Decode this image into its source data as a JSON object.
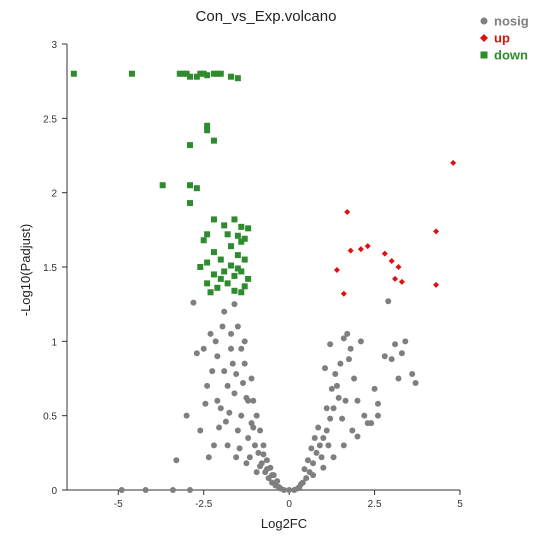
{
  "chart_data": {
    "type": "scatter",
    "title": "Con_vs_Exp.volcano",
    "xlabel": "Log2FC",
    "ylabel": "-Log10(Padjust)",
    "xlim": [
      -6.5,
      5
    ],
    "ylim": [
      0,
      3
    ],
    "xticks": [
      -5,
      -2.5,
      0,
      2.5,
      5
    ],
    "yticks": [
      0,
      0.5,
      1,
      1.5,
      2,
      2.5,
      3
    ],
    "legend_position": "top-right",
    "series": [
      {
        "name": "nosig",
        "color": "#7f7f7f",
        "marker": "circle",
        "points": [
          [
            -4.9,
            0.0
          ],
          [
            -4.2,
            0.0
          ],
          [
            -3.4,
            0.0
          ],
          [
            -2.9,
            0.0
          ],
          [
            -2.8,
            1.26
          ],
          [
            -3.0,
            0.5
          ],
          [
            -3.3,
            0.2
          ],
          [
            -2.1,
            0.9
          ],
          [
            -2.3,
            1.05
          ],
          [
            -1.9,
            1.2
          ],
          [
            -1.6,
            1.25
          ],
          [
            -2.6,
            0.4
          ],
          [
            -2.2,
            0.3
          ],
          [
            -2.0,
            0.55
          ],
          [
            -1.8,
            0.7
          ],
          [
            -1.7,
            0.95
          ],
          [
            -1.5,
            1.1
          ],
          [
            -1.3,
            0.85
          ],
          [
            -1.2,
            0.6
          ],
          [
            -1.1,
            0.45
          ],
          [
            -1.0,
            0.3
          ],
          [
            -0.9,
            0.25
          ],
          [
            -0.8,
            0.18
          ],
          [
            -0.7,
            0.12
          ],
          [
            -0.6,
            0.08
          ],
          [
            -0.5,
            0.05
          ],
          [
            -0.4,
            0.03
          ],
          [
            -0.3,
            0.02
          ],
          [
            -1.4,
            0.5
          ],
          [
            -1.6,
            0.65
          ],
          [
            -1.9,
            0.8
          ],
          [
            -2.1,
            0.6
          ],
          [
            -2.4,
            0.7
          ],
          [
            -1.4,
            0.95
          ],
          [
            -1.7,
            1.05
          ],
          [
            -1.2,
            0.35
          ],
          [
            -1.5,
            0.4
          ],
          [
            -1.8,
            0.3
          ],
          [
            -2.5,
            0.95
          ],
          [
            -1.3,
            1.0
          ],
          [
            -1.1,
            0.75
          ],
          [
            -0.95,
            0.5
          ],
          [
            -0.85,
            0.4
          ],
          [
            -0.75,
            0.3
          ],
          [
            -0.65,
            0.2
          ],
          [
            -0.55,
            0.15
          ],
          [
            -0.45,
            0.1
          ],
          [
            -0.35,
            0.06
          ],
          [
            -2.7,
            0.92
          ],
          [
            -1.95,
            1.1
          ],
          [
            -1.65,
            0.85
          ],
          [
            -1.35,
            0.72
          ],
          [
            -1.05,
            0.6
          ],
          [
            -2.05,
            0.42
          ],
          [
            -2.35,
            0.22
          ],
          [
            -1.55,
            0.22
          ],
          [
            -1.25,
            0.18
          ],
          [
            -0.95,
            0.12
          ],
          [
            -1.75,
            0.52
          ],
          [
            -2.15,
            1.0
          ],
          [
            0.3,
            0.02
          ],
          [
            0.4,
            0.05
          ],
          [
            0.5,
            0.08
          ],
          [
            0.6,
            0.12
          ],
          [
            0.7,
            0.18
          ],
          [
            0.8,
            0.25
          ],
          [
            0.9,
            0.3
          ],
          [
            1.0,
            0.35
          ],
          [
            1.1,
            0.4
          ],
          [
            1.2,
            0.48
          ],
          [
            1.3,
            0.55
          ],
          [
            1.4,
            0.7
          ],
          [
            1.5,
            0.85
          ],
          [
            1.6,
            1.02
          ],
          [
            1.7,
            1.05
          ],
          [
            1.8,
            0.95
          ],
          [
            1.9,
            0.75
          ],
          [
            2.0,
            0.6
          ],
          [
            2.2,
            0.5
          ],
          [
            2.4,
            0.45
          ],
          [
            2.6,
            0.5
          ],
          [
            2.8,
            0.9
          ],
          [
            3.0,
            0.88
          ],
          [
            3.2,
            0.75
          ],
          [
            3.4,
            1.0
          ],
          [
            3.6,
            0.78
          ],
          [
            3.7,
            0.72
          ],
          [
            2.9,
            1.27
          ],
          [
            2.6,
            0.58
          ],
          [
            2.3,
            0.45
          ],
          [
            2.0,
            0.36
          ],
          [
            1.6,
            0.3
          ],
          [
            1.3,
            0.22
          ],
          [
            1.0,
            0.15
          ],
          [
            0.7,
            0.1
          ],
          [
            1.1,
            0.55
          ],
          [
            1.25,
            0.68
          ],
          [
            1.35,
            0.78
          ],
          [
            1.45,
            0.62
          ],
          [
            1.55,
            0.48
          ],
          [
            1.15,
            0.3
          ],
          [
            0.95,
            0.22
          ],
          [
            0.85,
            0.42
          ],
          [
            0.75,
            0.35
          ],
          [
            0.65,
            0.28
          ],
          [
            1.05,
            0.82
          ],
          [
            1.2,
            0.98
          ],
          [
            1.75,
            0.88
          ],
          [
            2.5,
            0.68
          ],
          [
            3.3,
            0.92
          ],
          [
            3.1,
            0.98
          ],
          [
            2.1,
            1.0
          ],
          [
            1.85,
            0.4
          ],
          [
            1.65,
            0.6
          ],
          [
            0.55,
            0.2
          ],
          [
            0.45,
            0.14
          ],
          [
            -1.45,
            0.28
          ],
          [
            -1.15,
            0.22
          ],
          [
            -0.85,
            0.16
          ],
          [
            -2.45,
            0.58
          ],
          [
            -1.85,
            0.46
          ],
          [
            -1.05,
            0.42
          ],
          [
            -0.75,
            0.24
          ],
          [
            -0.65,
            0.14
          ],
          [
            -1.55,
            0.78
          ],
          [
            -1.25,
            0.62
          ],
          [
            -2.25,
            0.8
          ],
          [
            -0.5,
            0.1
          ],
          [
            0.35,
            0.04
          ],
          [
            0.25,
            0.01
          ],
          [
            -0.25,
            0.01
          ],
          [
            0.15,
            0.0
          ],
          [
            -0.15,
            0.0
          ],
          [
            0.0,
            0.0
          ]
        ]
      },
      {
        "name": "up",
        "color": "#e01010",
        "marker": "diamond",
        "points": [
          [
            4.8,
            2.2
          ],
          [
            1.7,
            1.87
          ],
          [
            4.3,
            1.74
          ],
          [
            1.8,
            1.61
          ],
          [
            2.1,
            1.62
          ],
          [
            2.3,
            1.64
          ],
          [
            2.8,
            1.59
          ],
          [
            3.0,
            1.54
          ],
          [
            3.2,
            1.5
          ],
          [
            1.4,
            1.48
          ],
          [
            3.1,
            1.42
          ],
          [
            3.3,
            1.4
          ],
          [
            4.3,
            1.38
          ],
          [
            1.6,
            1.32
          ]
        ]
      },
      {
        "name": "down",
        "color": "#2e8b2e",
        "marker": "square",
        "points": [
          [
            -6.3,
            2.8
          ],
          [
            -4.6,
            2.8
          ],
          [
            -3.2,
            2.8
          ],
          [
            -3.1,
            2.8
          ],
          [
            -3.0,
            2.8
          ],
          [
            -2.9,
            2.78
          ],
          [
            -2.7,
            2.78
          ],
          [
            -2.6,
            2.8
          ],
          [
            -2.5,
            2.8
          ],
          [
            -2.4,
            2.79
          ],
          [
            -2.2,
            2.8
          ],
          [
            -2.1,
            2.8
          ],
          [
            -2.0,
            2.8
          ],
          [
            -1.7,
            2.78
          ],
          [
            -1.5,
            2.77
          ],
          [
            -2.4,
            2.45
          ],
          [
            -2.4,
            2.42
          ],
          [
            -2.2,
            2.35
          ],
          [
            -2.9,
            2.32
          ],
          [
            -3.7,
            2.05
          ],
          [
            -2.9,
            2.05
          ],
          [
            -2.7,
            2.03
          ],
          [
            -2.9,
            1.93
          ],
          [
            -2.2,
            1.82
          ],
          [
            -1.6,
            1.82
          ],
          [
            -1.9,
            1.78
          ],
          [
            -1.4,
            1.77
          ],
          [
            -1.2,
            1.76
          ],
          [
            -2.4,
            1.72
          ],
          [
            -1.8,
            1.72
          ],
          [
            -1.5,
            1.71
          ],
          [
            -1.3,
            1.69
          ],
          [
            -2.5,
            1.68
          ],
          [
            -1.4,
            1.67
          ],
          [
            -1.7,
            1.64
          ],
          [
            -2.2,
            1.6
          ],
          [
            -1.5,
            1.58
          ],
          [
            -2.0,
            1.55
          ],
          [
            -1.3,
            1.55
          ],
          [
            -2.4,
            1.53
          ],
          [
            -1.7,
            1.51
          ],
          [
            -2.6,
            1.5
          ],
          [
            -1.5,
            1.49
          ],
          [
            -1.9,
            1.47
          ],
          [
            -1.4,
            1.47
          ],
          [
            -2.2,
            1.45
          ],
          [
            -1.6,
            1.44
          ],
          [
            -2.0,
            1.42
          ],
          [
            -1.2,
            1.42
          ],
          [
            -2.4,
            1.39
          ],
          [
            -1.8,
            1.39
          ],
          [
            -1.3,
            1.37
          ],
          [
            -2.1,
            1.36
          ],
          [
            -1.6,
            1.34
          ],
          [
            -2.3,
            1.33
          ],
          [
            -1.4,
            1.33
          ]
        ]
      }
    ]
  }
}
